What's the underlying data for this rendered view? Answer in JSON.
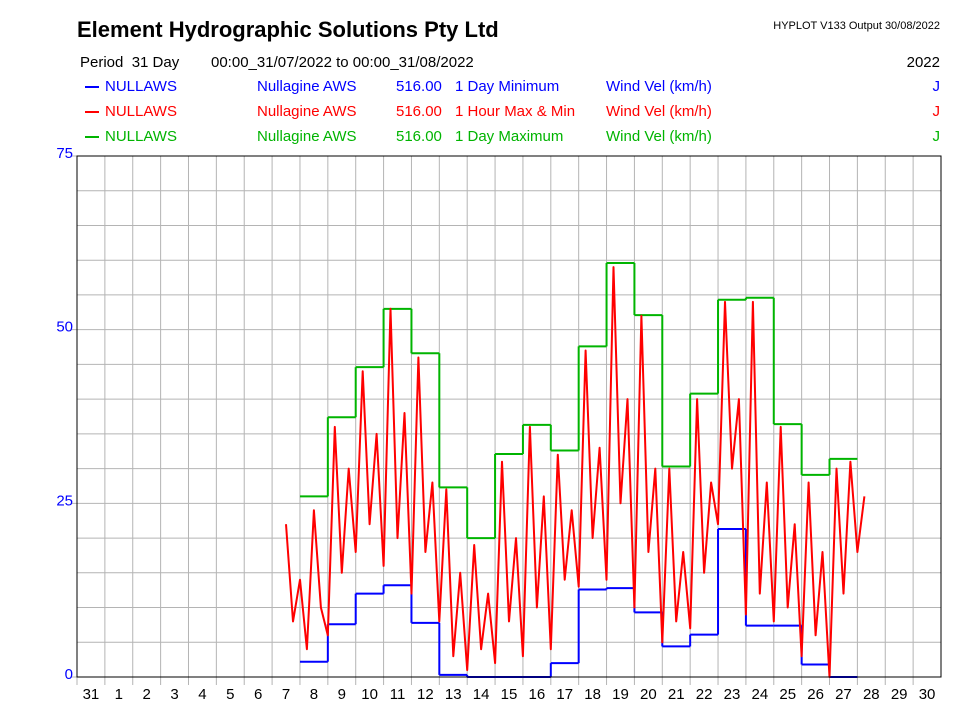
{
  "chart_data": {
    "type": "line",
    "title": "Element Hydrographic Solutions Pty Ltd",
    "program": "HYPLOT V133  Output 30/08/2022",
    "period_label": "Period  31 Day",
    "period": "00:00_31/07/2022 to 00:00_31/08/2022",
    "year": "2022",
    "categories": [
      "31",
      "1",
      "2",
      "3",
      "4",
      "5",
      "6",
      "7",
      "8",
      "9",
      "10",
      "11",
      "12",
      "13",
      "14",
      "15",
      "16",
      "17",
      "18",
      "19",
      "20",
      "21",
      "22",
      "23",
      "24",
      "25",
      "26",
      "27",
      "28",
      "29",
      "30"
    ],
    "xlim": [
      0,
      31
    ],
    "ylim": [
      0,
      75
    ],
    "yticks": [
      0,
      25,
      50,
      75
    ],
    "y_minor_ticks": [
      5,
      10,
      15,
      20,
      30,
      35,
      40,
      45,
      55,
      60,
      65,
      70
    ],
    "grid": true,
    "series": [
      {
        "code": "NULLAWS",
        "site": "Nullagine AWS",
        "variable": "516.00",
        "name": "1 Day Minimum",
        "unit": "Wind Vel (km/h)",
        "quality": "J",
        "color": "#0000ff",
        "style": "step",
        "x": [
          8,
          9,
          10,
          11,
          12,
          13,
          14,
          15,
          16,
          17,
          18,
          19,
          20,
          21,
          22,
          23,
          24,
          25,
          26,
          27
        ],
        "values": [
          2.2,
          7.6,
          12,
          13.2,
          7.8,
          0.3,
          0,
          0,
          0,
          2,
          12.6,
          12.8,
          9.3,
          4.4,
          6.1,
          21.3,
          7.4,
          7.4,
          1.8,
          0
        ]
      },
      {
        "code": "NULLAWS",
        "site": "Nullagine AWS",
        "variable": "516.00",
        "name": "1 Hour Max & Min",
        "unit": "Wind Vel (km/h)",
        "quality": "J",
        "color": "#ff0000",
        "style": "line",
        "x": [
          7.5,
          7.75,
          8,
          8.25,
          8.5,
          8.75,
          9,
          9.25,
          9.5,
          9.75,
          10,
          10.25,
          10.5,
          10.75,
          11,
          11.25,
          11.5,
          11.75,
          12,
          12.25,
          12.5,
          12.75,
          13,
          13.25,
          13.5,
          13.75,
          14,
          14.25,
          14.5,
          14.75,
          15,
          15.25,
          15.5,
          15.75,
          16,
          16.25,
          16.5,
          16.75,
          17,
          17.25,
          17.5,
          17.75,
          18,
          18.25,
          18.5,
          18.75,
          19,
          19.25,
          19.5,
          19.75,
          20,
          20.25,
          20.5,
          20.75,
          21,
          21.25,
          21.5,
          21.75,
          22,
          22.25,
          22.5,
          22.75,
          23,
          23.25,
          23.5,
          23.75,
          24,
          24.25,
          24.5,
          24.75,
          25,
          25.25,
          25.5,
          25.75,
          26,
          26.25,
          26.5,
          26.75,
          27,
          27.25,
          27.5,
          27.75,
          28,
          28.25
        ],
        "values": [
          22,
          8,
          14,
          4,
          24,
          10,
          6,
          36,
          15,
          30,
          18,
          44,
          22,
          35,
          16,
          53,
          20,
          38,
          12,
          46,
          18,
          28,
          8,
          27,
          3,
          15,
          1,
          19,
          4,
          12,
          2,
          31,
          8,
          20,
          3,
          36,
          10,
          26,
          4,
          32,
          14,
          24,
          13,
          47,
          20,
          33,
          14,
          59,
          25,
          40,
          10,
          52,
          18,
          30,
          5,
          30,
          8,
          18,
          7,
          40,
          15,
          28,
          22,
          54,
          30,
          40,
          9,
          54,
          12,
          28,
          8,
          36,
          10,
          22,
          3,
          28,
          6,
          18,
          0,
          30,
          12,
          31,
          18,
          26
        ]
      },
      {
        "code": "NULLAWS",
        "site": "Nullagine AWS",
        "variable": "516.00",
        "name": "1 Day Maximum",
        "unit": "Wind Vel (km/h)",
        "quality": "J",
        "color": "#00b400",
        "style": "step",
        "x": [
          8,
          9,
          10,
          11,
          12,
          13,
          14,
          15,
          16,
          17,
          18,
          19,
          20,
          21,
          22,
          23,
          24,
          25,
          26,
          27
        ],
        "values": [
          26,
          37.4,
          44.6,
          53,
          46.6,
          27.3,
          20,
          32.1,
          36.3,
          32.6,
          47.6,
          59.6,
          52.1,
          30.3,
          40.8,
          54.3,
          54.6,
          36.4,
          29.1,
          31.4
        ]
      }
    ]
  }
}
